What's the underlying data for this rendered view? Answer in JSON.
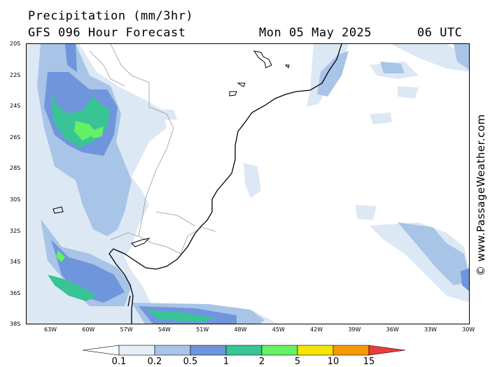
{
  "header": {
    "title": "Precipitation (mm/3hr)",
    "subtitle": "GFS 096 Hour Forecast",
    "date": "Mon 05 May 2025",
    "time": "06 UTC"
  },
  "credit": "© www.PassageWeather.com",
  "lat_labels": [
    "20S",
    "22S",
    "24S",
    "26S",
    "28S",
    "30S",
    "32S",
    "34S",
    "36S",
    "38S"
  ],
  "lon_labels": [
    "63W",
    "60W",
    "57W",
    "54W",
    "51W",
    "48W",
    "45W",
    "42W",
    "39W",
    "36W",
    "33W",
    "30W"
  ],
  "legend": {
    "values": [
      "0.1",
      "0.2",
      "0.5",
      "1",
      "2",
      "5",
      "10",
      "15"
    ],
    "colors": [
      "#ffffff",
      "#e6eef8",
      "#a8c4e6",
      "#6f95dc",
      "#39c495",
      "#66f066",
      "#f5e500",
      "#f59a00",
      "#ec3a3a"
    ]
  },
  "map": {
    "region": "South America Atlantic",
    "lat_range": [
      -38,
      -20
    ],
    "lon_range": [
      -65,
      -30
    ],
    "colors": {
      "land_outline": "#000000",
      "borders": "#999999",
      "light_precip": "#dde8f5",
      "light_blue": "#a8c4e6",
      "mid_blue": "#6f95dc",
      "teal": "#39c495",
      "green": "#66f066"
    }
  }
}
